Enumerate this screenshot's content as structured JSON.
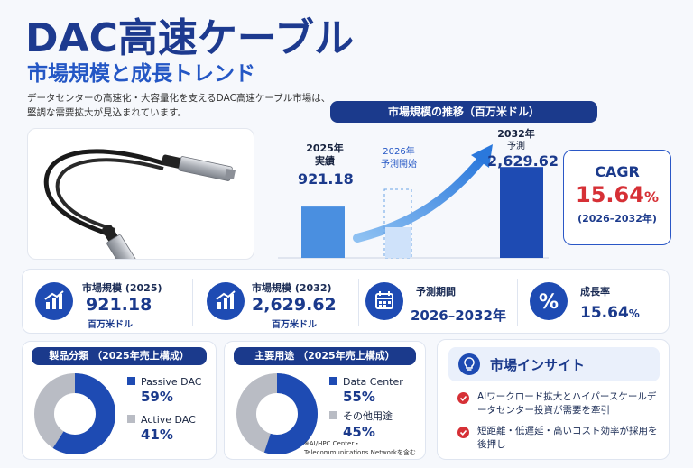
{
  "header": {
    "title": "DAC高速ケーブル",
    "subtitle": "市場規模と成長トレンド",
    "intro": "データセンターの高速化・大容量化を支えるDAC高速ケーブル市場は、堅調な需要拡大が見込まれています。"
  },
  "chart": {
    "title": "市場規模の推移（百万米ドル）",
    "bar_2025": {
      "year": "2025年",
      "tag": "実績",
      "value": "921.18"
    },
    "bar_2026": {
      "year": "2026年",
      "tag": "予測開始"
    },
    "bar_2032": {
      "year": "2032年",
      "tag": "予測",
      "value": "2,629.62"
    }
  },
  "cagr": {
    "label": "CAGR",
    "value": "15.64",
    "unit": "%",
    "period": "(2026–2032年)"
  },
  "stats": [
    {
      "label": "市場規模 (2025)",
      "value": "921.18",
      "unit": "百万米ドル",
      "icon": "growth-chart-icon"
    },
    {
      "label": "市場規模 (2032)",
      "value": "2,629.62",
      "unit": "百万米ドル",
      "icon": "growth-chart-icon"
    },
    {
      "label": "予測期間",
      "value": "2026–2032年",
      "icon": "calendar-icon"
    },
    {
      "label": "成長率",
      "value": "15.64",
      "unit": "%",
      "icon": "percent-icon"
    }
  ],
  "product_split": {
    "title": "製品分類 （2025年売上構成）",
    "items": [
      {
        "name": "Passive DAC",
        "pct": "59%",
        "color": "#1e4bb3"
      },
      {
        "name": "Active DAC",
        "pct": "41%",
        "color": "#b9bcc4"
      }
    ]
  },
  "application_split": {
    "title": "主要用途 （2025年売上構成）",
    "items": [
      {
        "name": "Data Center",
        "pct": "55%",
        "color": "#1e4bb3"
      },
      {
        "name": "その他用途",
        "pct": "45%",
        "color": "#b9bcc4"
      }
    ],
    "note": "※AI/HPC Center・Telecommunications Networkを含む"
  },
  "insights": {
    "title": "市場インサイト",
    "items": [
      "AIワークロード拡大とハイパースケールデータセンター投資が需要を牽引",
      "短距離・低遅延・高いコスト効率が採用を後押し"
    ]
  },
  "chart_data": {
    "type": "bar",
    "categories": [
      "2025年",
      "2026年",
      "2032年"
    ],
    "values": [
      921.18,
      null,
      2629.62
    ],
    "title": "市場規模の推移（百万米ドル）"
  }
}
